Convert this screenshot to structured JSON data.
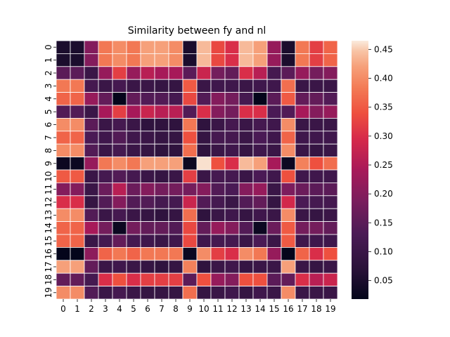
{
  "chart_data": {
    "type": "heatmap",
    "title": "Similarity between fy and nl",
    "xlabel": "",
    "ylabel": "",
    "x_labels": [
      "0",
      "1",
      "2",
      "3",
      "4",
      "5",
      "6",
      "7",
      "8",
      "9",
      "10",
      "11",
      "12",
      "13",
      "14",
      "15",
      "16",
      "17",
      "18",
      "19"
    ],
    "y_labels": [
      "0",
      "1",
      "2",
      "3",
      "4",
      "5",
      "6",
      "7",
      "8",
      "9",
      "10",
      "11",
      "12",
      "13",
      "14",
      "15",
      "16",
      "17",
      "18",
      "19"
    ],
    "values": [
      [
        0.05,
        0.05,
        0.2,
        0.38,
        0.4,
        0.38,
        0.42,
        0.42,
        0.4,
        0.05,
        0.44,
        0.33,
        0.3,
        0.44,
        0.42,
        0.22,
        0.05,
        0.38,
        0.32,
        0.36
      ],
      [
        0.05,
        0.05,
        0.2,
        0.38,
        0.4,
        0.38,
        0.42,
        0.42,
        0.4,
        0.05,
        0.44,
        0.33,
        0.3,
        0.44,
        0.42,
        0.22,
        0.05,
        0.38,
        0.32,
        0.36
      ],
      [
        0.15,
        0.15,
        0.1,
        0.22,
        0.32,
        0.22,
        0.26,
        0.24,
        0.24,
        0.15,
        0.28,
        0.18,
        0.16,
        0.3,
        0.26,
        0.12,
        0.15,
        0.22,
        0.18,
        0.2
      ],
      [
        0.38,
        0.38,
        0.12,
        0.1,
        0.12,
        0.1,
        0.1,
        0.09,
        0.09,
        0.35,
        0.1,
        0.11,
        0.11,
        0.1,
        0.11,
        0.11,
        0.37,
        0.1,
        0.1,
        0.1
      ],
      [
        0.36,
        0.36,
        0.22,
        0.16,
        0.02,
        0.16,
        0.14,
        0.14,
        0.12,
        0.33,
        0.14,
        0.2,
        0.18,
        0.12,
        0.02,
        0.15,
        0.35,
        0.16,
        0.16,
        0.14
      ],
      [
        0.14,
        0.14,
        0.1,
        0.24,
        0.32,
        0.24,
        0.28,
        0.26,
        0.26,
        0.14,
        0.3,
        0.2,
        0.18,
        0.3,
        0.3,
        0.13,
        0.14,
        0.24,
        0.2,
        0.22
      ],
      [
        0.4,
        0.4,
        0.15,
        0.1,
        0.12,
        0.1,
        0.08,
        0.08,
        0.08,
        0.38,
        0.08,
        0.1,
        0.12,
        0.1,
        0.12,
        0.11,
        0.4,
        0.1,
        0.1,
        0.1
      ],
      [
        0.36,
        0.36,
        0.13,
        0.11,
        0.14,
        0.11,
        0.1,
        0.09,
        0.09,
        0.34,
        0.09,
        0.12,
        0.12,
        0.1,
        0.13,
        0.11,
        0.36,
        0.11,
        0.11,
        0.11
      ],
      [
        0.4,
        0.4,
        0.14,
        0.1,
        0.12,
        0.1,
        0.09,
        0.08,
        0.08,
        0.37,
        0.08,
        0.1,
        0.11,
        0.09,
        0.11,
        0.1,
        0.4,
        0.1,
        0.09,
        0.1
      ],
      [
        0.03,
        0.03,
        0.22,
        0.38,
        0.4,
        0.38,
        0.42,
        0.42,
        0.42,
        0.03,
        0.46,
        0.34,
        0.3,
        0.44,
        0.42,
        0.24,
        0.03,
        0.39,
        0.34,
        0.37
      ],
      [
        0.35,
        0.35,
        0.1,
        0.12,
        0.14,
        0.12,
        0.1,
        0.09,
        0.1,
        0.32,
        0.1,
        0.12,
        0.12,
        0.1,
        0.13,
        0.11,
        0.34,
        0.11,
        0.11,
        0.11
      ],
      [
        0.2,
        0.2,
        0.1,
        0.17,
        0.26,
        0.17,
        0.2,
        0.18,
        0.18,
        0.18,
        0.2,
        0.14,
        0.13,
        0.2,
        0.22,
        0.1,
        0.19,
        0.17,
        0.15,
        0.15
      ],
      [
        0.3,
        0.3,
        0.09,
        0.14,
        0.2,
        0.14,
        0.14,
        0.12,
        0.12,
        0.28,
        0.14,
        0.12,
        0.1,
        0.14,
        0.16,
        0.09,
        0.29,
        0.13,
        0.12,
        0.12
      ],
      [
        0.4,
        0.4,
        0.14,
        0.1,
        0.12,
        0.1,
        0.09,
        0.08,
        0.09,
        0.37,
        0.08,
        0.1,
        0.11,
        0.09,
        0.11,
        0.1,
        0.4,
        0.1,
        0.09,
        0.1
      ],
      [
        0.36,
        0.36,
        0.24,
        0.18,
        0.03,
        0.18,
        0.16,
        0.16,
        0.14,
        0.33,
        0.16,
        0.22,
        0.2,
        0.14,
        0.03,
        0.17,
        0.35,
        0.18,
        0.18,
        0.16
      ],
      [
        0.36,
        0.36,
        0.1,
        0.12,
        0.16,
        0.12,
        0.11,
        0.1,
        0.11,
        0.33,
        0.11,
        0.12,
        0.12,
        0.1,
        0.13,
        0.1,
        0.35,
        0.11,
        0.11,
        0.11
      ],
      [
        0.02,
        0.02,
        0.21,
        0.36,
        0.38,
        0.36,
        0.38,
        0.38,
        0.38,
        0.03,
        0.4,
        0.32,
        0.3,
        0.4,
        0.38,
        0.22,
        0.02,
        0.36,
        0.3,
        0.34
      ],
      [
        0.42,
        0.42,
        0.16,
        0.1,
        0.11,
        0.1,
        0.09,
        0.08,
        0.09,
        0.39,
        0.08,
        0.1,
        0.11,
        0.09,
        0.1,
        0.1,
        0.42,
        0.1,
        0.09,
        0.1
      ],
      [
        0.16,
        0.16,
        0.12,
        0.3,
        0.34,
        0.3,
        0.32,
        0.32,
        0.32,
        0.15,
        0.34,
        0.22,
        0.2,
        0.34,
        0.34,
        0.15,
        0.16,
        0.3,
        0.26,
        0.28
      ],
      [
        0.4,
        0.4,
        0.14,
        0.1,
        0.12,
        0.1,
        0.09,
        0.09,
        0.09,
        0.37,
        0.09,
        0.1,
        0.11,
        0.09,
        0.11,
        0.1,
        0.4,
        0.1,
        0.1,
        0.1
      ]
    ],
    "colormap": "rocket",
    "colorbar": {
      "range": [
        0.018,
        0.465
      ],
      "ticks": [
        "0.05",
        "0.10",
        "0.15",
        "0.20",
        "0.25",
        "0.30",
        "0.35",
        "0.40",
        "0.45"
      ],
      "tick_values": [
        0.05,
        0.1,
        0.15,
        0.2,
        0.25,
        0.3,
        0.35,
        0.4,
        0.45
      ]
    },
    "cell_border_color": "#ffffff",
    "grid": false
  }
}
